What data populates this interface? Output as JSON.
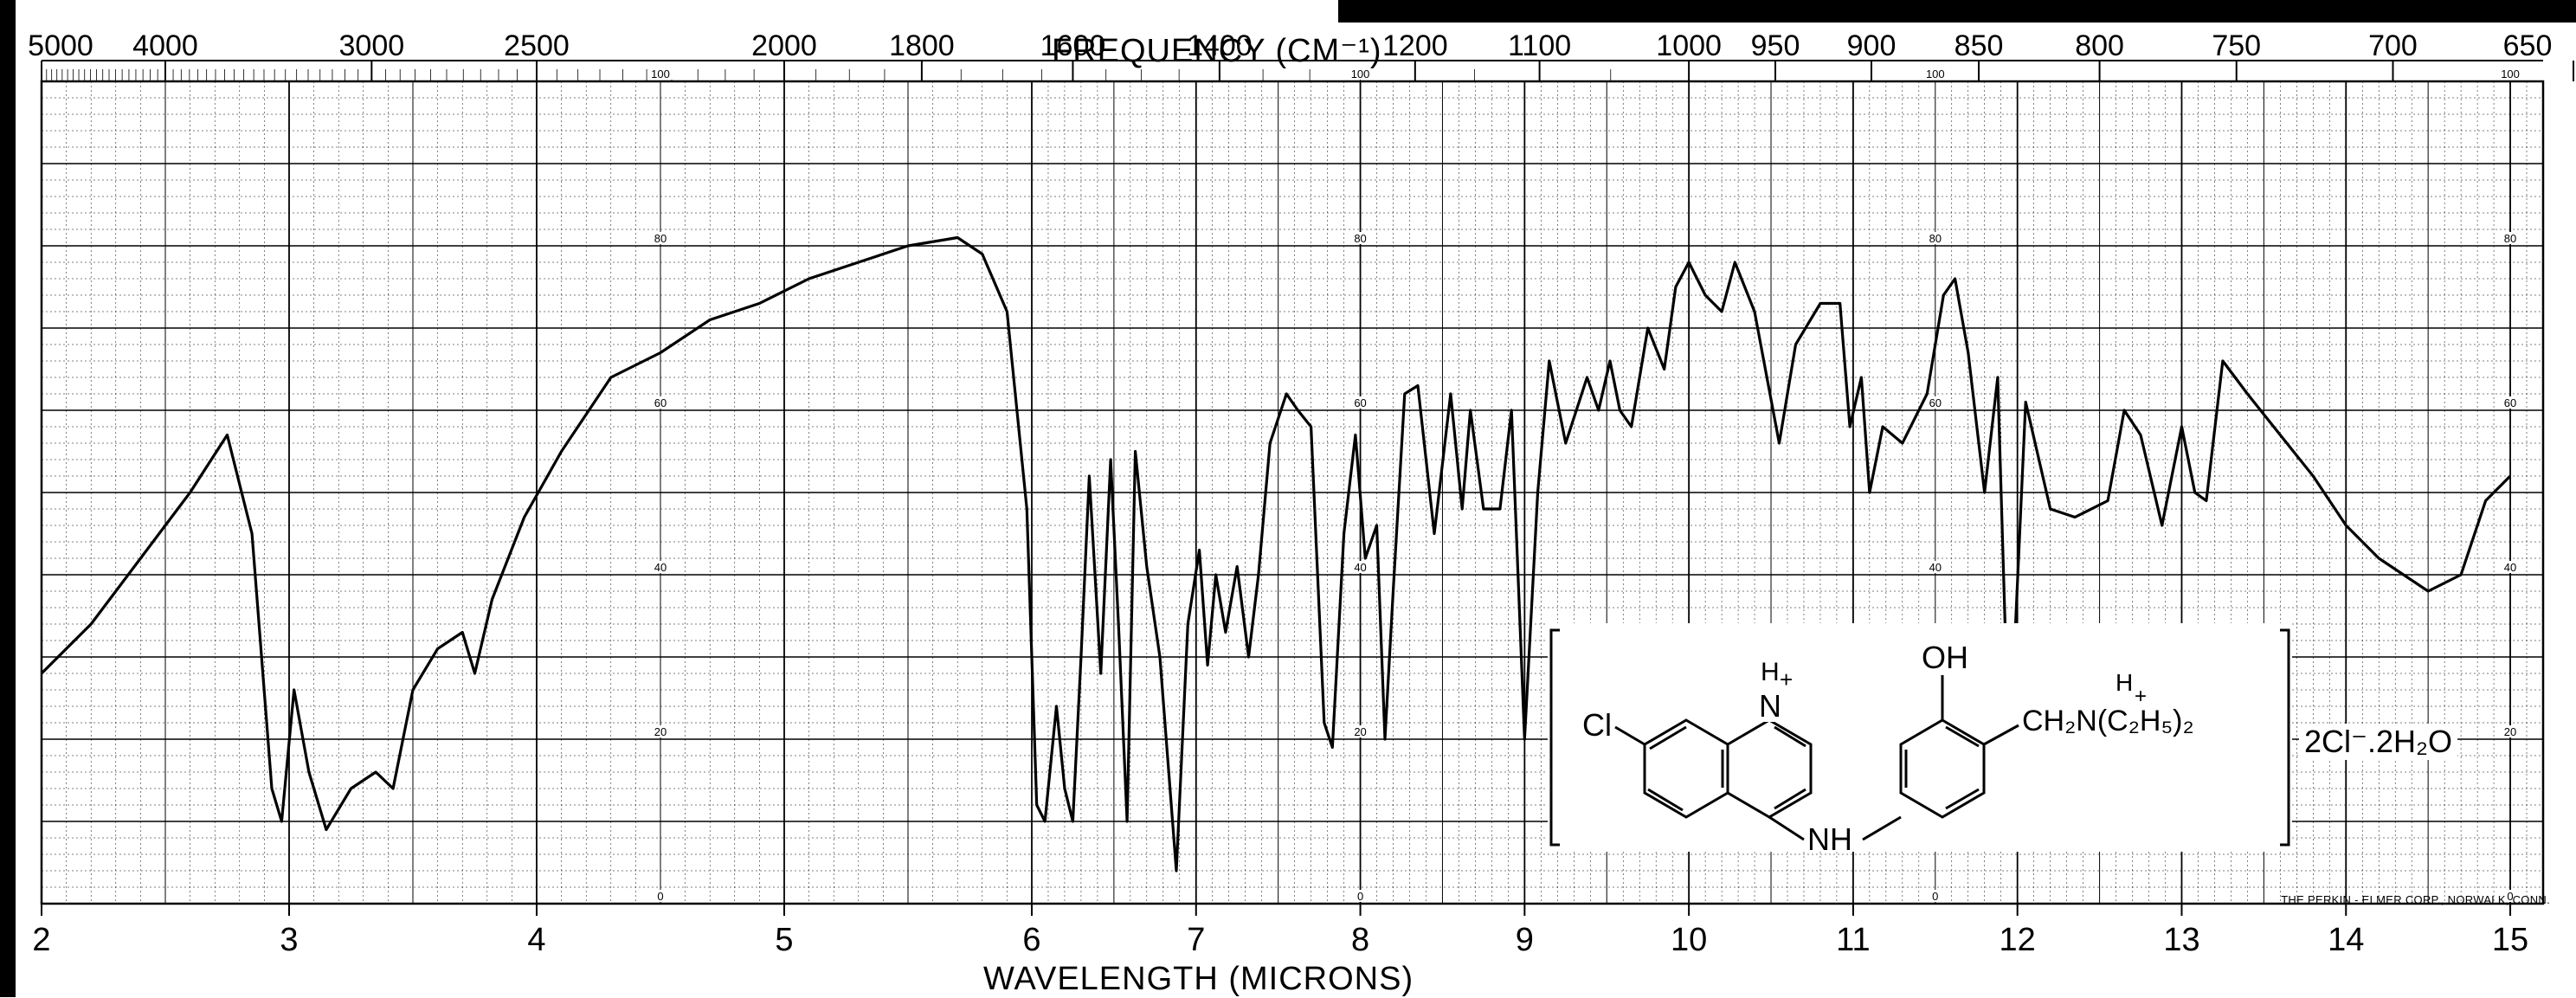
{
  "figure": {
    "top_axis_title": "FREQUENCY (CM⁻¹)",
    "bottom_axis_title": "WAVELENGTH (MICRONS)",
    "footer": "THE PERKIN - ELMER CORP., NORWALK, CONN.",
    "counter_ion": "2Cl⁻.2H₂O",
    "structure_labels": {
      "cl": "Cl",
      "hplus_n": "H",
      "oh": "OH",
      "nh": "NH",
      "side_chain": "CH₂N(C₂H₅)₂"
    }
  },
  "chart_data": {
    "type": "line",
    "title": "",
    "xlabel": "WAVELENGTH (MICRONS)",
    "x2label": "FREQUENCY (CM⁻¹)",
    "ylabel": "",
    "xlim": [
      2,
      15.2
    ],
    "ylim": [
      0,
      100
    ],
    "grid": true,
    "x_ticks": [
      "2",
      "3",
      "4",
      "5",
      "6",
      "7",
      "8",
      "9",
      "10",
      "11",
      "12",
      "13",
      "14",
      "15"
    ],
    "x_tick_values": [
      2,
      3,
      4,
      5,
      6,
      7,
      8,
      9,
      10,
      11,
      12,
      13,
      14,
      15
    ],
    "top_ticks": [
      "5000",
      "4000",
      "3000",
      "2500",
      "2000",
      "1800",
      "1600",
      "1400",
      "1200",
      "1100",
      "1000",
      "950",
      "900",
      "850",
      "800",
      "750",
      "700",
      "650"
    ],
    "top_tick_values": [
      5000,
      4000,
      3000,
      2500,
      2000,
      1800,
      1600,
      1400,
      1200,
      1100,
      1000,
      950,
      900,
      850,
      800,
      750,
      700,
      650
    ],
    "y_ticks": [
      "0",
      "20",
      "40",
      "60",
      "80",
      "100"
    ],
    "y_tick_values": [
      0,
      20,
      40,
      60,
      80,
      100
    ],
    "y_label_columns_at_x": [
      4.5,
      8.0,
      11.5,
      15.0
    ],
    "series": [
      {
        "name": "",
        "x": [
          2.0,
          2.2,
          2.4,
          2.6,
          2.75,
          2.85,
          2.93,
          2.97,
          3.02,
          3.08,
          3.15,
          3.25,
          3.35,
          3.42,
          3.5,
          3.6,
          3.7,
          3.75,
          3.82,
          3.95,
          4.1,
          4.3,
          4.5,
          4.7,
          4.9,
          5.1,
          5.3,
          5.5,
          5.7,
          5.8,
          5.9,
          5.98,
          6.03,
          6.08,
          6.15,
          6.2,
          6.25,
          6.3,
          6.35,
          6.42,
          6.48,
          6.53,
          6.58,
          6.63,
          6.7,
          6.78,
          6.88,
          6.95,
          7.02,
          7.07,
          7.12,
          7.18,
          7.25,
          7.32,
          7.38,
          7.45,
          7.55,
          7.62,
          7.7,
          7.78,
          7.83,
          7.9,
          7.97,
          8.03,
          8.1,
          8.15,
          8.2,
          8.27,
          8.35,
          8.45,
          8.55,
          8.62,
          8.67,
          8.75,
          8.85,
          8.92,
          9.0,
          9.08,
          9.15,
          9.25,
          9.38,
          9.45,
          9.52,
          9.58,
          9.65,
          9.75,
          9.85,
          9.92,
          10.0,
          10.1,
          10.2,
          10.28,
          10.4,
          10.55,
          10.65,
          10.8,
          10.92,
          10.98,
          11.05,
          11.1,
          11.18,
          11.3,
          11.45,
          11.55,
          11.62,
          11.7,
          11.8,
          11.88,
          11.95,
          12.05,
          12.2,
          12.35,
          12.55,
          12.65,
          12.75,
          12.88,
          13.0,
          13.08,
          13.15,
          13.25,
          13.4,
          13.6,
          13.8,
          14.0,
          14.2,
          14.5,
          14.7,
          14.85,
          15.0
        ],
        "y": [
          28,
          34,
          42,
          50,
          57,
          45,
          14,
          10,
          26,
          16,
          9,
          14,
          16,
          14,
          26,
          31,
          33,
          28,
          37,
          47,
          55,
          64,
          67,
          71,
          73,
          76,
          78,
          80,
          81,
          79,
          72,
          48,
          12,
          10,
          24,
          14,
          10,
          30,
          52,
          28,
          54,
          33,
          10,
          55,
          41,
          30,
          4,
          34,
          43,
          29,
          40,
          33,
          41,
          30,
          40,
          56,
          62,
          60,
          58,
          22,
          19,
          45,
          57,
          42,
          46,
          20,
          38,
          62,
          63,
          45,
          62,
          48,
          60,
          48,
          48,
          60,
          20,
          50,
          66,
          56,
          64,
          60,
          66,
          60,
          58,
          70,
          65,
          75,
          78,
          74,
          72,
          78,
          72,
          56,
          68,
          73,
          73,
          58,
          64,
          50,
          58,
          56,
          62,
          74,
          76,
          67,
          50,
          64,
          17,
          61,
          48,
          47,
          49,
          60,
          57,
          46,
          58,
          50,
          49,
          66,
          62,
          57,
          52,
          46,
          42,
          38,
          40,
          49,
          52
        ]
      }
    ],
    "annotations": [
      "Cl",
      "H",
      "OH",
      "NH",
      "CH₂N(C₂H₅)₂",
      "2Cl⁻.2H₂O"
    ]
  },
  "colors": {
    "grid": "#000000",
    "paper": "#ffffff",
    "ink": "#000000"
  }
}
